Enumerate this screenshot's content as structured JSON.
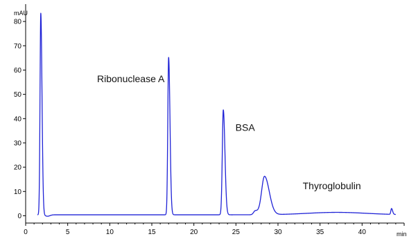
{
  "chart_data": {
    "type": "line",
    "title": "",
    "xlabel": "",
    "ylabel": "",
    "x_unit": "min",
    "y_unit": "mAU",
    "xlim": [
      0,
      45
    ],
    "ylim": [
      -3,
      86
    ],
    "x_ticks": [
      0,
      5,
      10,
      15,
      20,
      25,
      30,
      35,
      40
    ],
    "y_ticks": [
      0,
      10,
      20,
      30,
      40,
      50,
      60,
      70,
      80
    ],
    "grid": false,
    "line_color": "#1f22d6",
    "baseline": 0.4,
    "peaks": [
      {
        "x": 1.8,
        "height": 83,
        "width": 0.09
      },
      {
        "x": 17.0,
        "height": 64.8,
        "width": 0.1
      },
      {
        "x": 23.5,
        "height": 43.2,
        "width": 0.12
      },
      {
        "x": 27.3,
        "height": 1.6,
        "width": 0.2
      },
      {
        "x": 28.4,
        "height": 15.8,
        "width": 0.35
      },
      {
        "x": 43.5,
        "height": 2.4,
        "width": 0.08
      }
    ],
    "annotations": [
      {
        "text": "Ribonuclease A",
        "x": 12.5,
        "y": 55
      },
      {
        "text": "BSA",
        "x": 26.1,
        "y": 35
      },
      {
        "text": "Thyroglobulin",
        "x": 36.4,
        "y": 11
      }
    ]
  }
}
